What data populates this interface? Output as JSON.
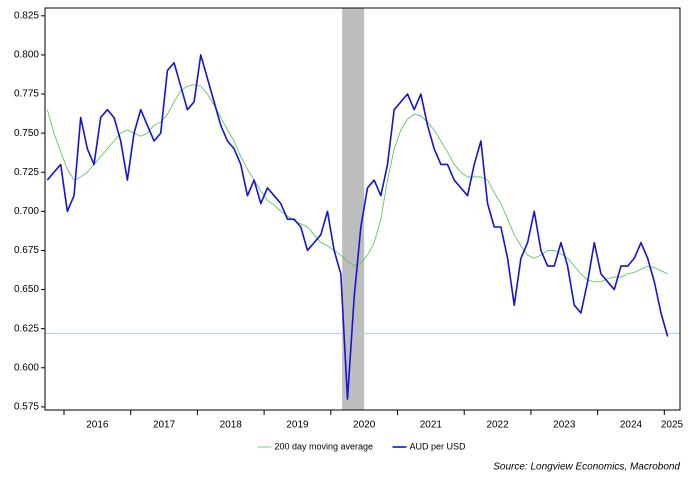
{
  "chart_data": {
    "type": "line",
    "source": "Source: Longview Economics, Macrobond",
    "x": [
      2015.75,
      2015.85,
      2015.95,
      2016.05,
      2016.15,
      2016.25,
      2016.35,
      2016.45,
      2016.55,
      2016.65,
      2016.75,
      2016.85,
      2016.95,
      2017.05,
      2017.15,
      2017.25,
      2017.35,
      2017.45,
      2017.55,
      2017.65,
      2017.75,
      2017.85,
      2017.95,
      2018.05,
      2018.15,
      2018.25,
      2018.35,
      2018.45,
      2018.55,
      2018.65,
      2018.75,
      2018.85,
      2018.95,
      2019.05,
      2019.15,
      2019.25,
      2019.35,
      2019.45,
      2019.55,
      2019.65,
      2019.75,
      2019.85,
      2019.95,
      2020.05,
      2020.15,
      2020.25,
      2020.35,
      2020.45,
      2020.55,
      2020.65,
      2020.75,
      2020.85,
      2020.95,
      2021.05,
      2021.15,
      2021.25,
      2021.35,
      2021.45,
      2021.55,
      2021.65,
      2021.75,
      2021.85,
      2021.95,
      2022.05,
      2022.15,
      2022.25,
      2022.35,
      2022.45,
      2022.55,
      2022.65,
      2022.75,
      2022.85,
      2022.95,
      2023.05,
      2023.15,
      2023.25,
      2023.35,
      2023.45,
      2023.55,
      2023.65,
      2023.75,
      2023.85,
      2023.95,
      2024.05,
      2024.15,
      2024.25,
      2024.35,
      2024.45,
      2024.55,
      2024.65,
      2024.75,
      2024.85,
      2024.95,
      2025.05
    ],
    "series": [
      {
        "name": "200 day moving average",
        "color": "#4fc24f",
        "width": 0.8,
        "values": [
          0.765,
          0.75,
          0.738,
          0.727,
          0.72,
          0.722,
          0.725,
          0.73,
          0.735,
          0.74,
          0.745,
          0.75,
          0.752,
          0.75,
          0.748,
          0.75,
          0.755,
          0.757,
          0.762,
          0.77,
          0.777,
          0.78,
          0.781,
          0.78,
          0.775,
          0.768,
          0.76,
          0.752,
          0.745,
          0.735,
          0.727,
          0.72,
          0.713,
          0.707,
          0.704,
          0.7,
          0.697,
          0.694,
          0.692,
          0.69,
          0.685,
          0.68,
          0.678,
          0.675,
          0.672,
          0.668,
          0.665,
          0.667,
          0.672,
          0.68,
          0.695,
          0.72,
          0.74,
          0.752,
          0.759,
          0.762,
          0.761,
          0.757,
          0.752,
          0.745,
          0.738,
          0.73,
          0.725,
          0.722,
          0.722,
          0.722,
          0.72,
          0.712,
          0.705,
          0.695,
          0.685,
          0.678,
          0.672,
          0.67,
          0.672,
          0.675,
          0.675,
          0.673,
          0.67,
          0.665,
          0.66,
          0.656,
          0.655,
          0.655,
          0.657,
          0.658,
          0.658,
          0.66,
          0.661,
          0.663,
          0.665,
          0.664,
          0.662,
          0.66
        ]
      },
      {
        "name": "AUD per USD",
        "color": "#1414d2",
        "width": 1.6,
        "values": [
          0.72,
          0.725,
          0.73,
          0.7,
          0.71,
          0.76,
          0.74,
          0.73,
          0.76,
          0.765,
          0.76,
          0.745,
          0.72,
          0.75,
          0.765,
          0.755,
          0.745,
          0.75,
          0.79,
          0.795,
          0.78,
          0.765,
          0.77,
          0.8,
          0.785,
          0.77,
          0.755,
          0.745,
          0.74,
          0.73,
          0.71,
          0.72,
          0.705,
          0.715,
          0.71,
          0.705,
          0.695,
          0.695,
          0.69,
          0.675,
          0.68,
          0.685,
          0.7,
          0.675,
          0.66,
          0.58,
          0.645,
          0.69,
          0.715,
          0.72,
          0.71,
          0.73,
          0.765,
          0.77,
          0.775,
          0.765,
          0.775,
          0.755,
          0.74,
          0.73,
          0.73,
          0.72,
          0.715,
          0.71,
          0.73,
          0.745,
          0.705,
          0.69,
          0.69,
          0.67,
          0.64,
          0.67,
          0.68,
          0.7,
          0.675,
          0.665,
          0.665,
          0.68,
          0.665,
          0.64,
          0.635,
          0.655,
          0.68,
          0.66,
          0.655,
          0.65,
          0.665,
          0.665,
          0.67,
          0.68,
          0.67,
          0.655,
          0.635,
          0.62
        ]
      }
    ],
    "xlim": [
      2015.715,
      2025.235
    ],
    "xticks": [
      2016,
      2017,
      2018,
      2019,
      2020,
      2021,
      2022,
      2023,
      2024,
      2025
    ],
    "ylim": [
      0.573,
      0.83
    ],
    "yticks": [
      0.575,
      {
        "value": 0.6,
        "label": "0.600"
      },
      0.625,
      {
        "value": 0.65,
        "label": "0.650"
      },
      0.675,
      {
        "value": 0.7,
        "label": "0.700"
      },
      0.725,
      {
        "value": 0.75,
        "label": "0.750"
      },
      0.775,
      {
        "value": 0.8,
        "label": "0.800"
      },
      0.825
    ],
    "reference_line": {
      "value": 0.622,
      "color": "#a8cdea"
    },
    "shade": {
      "x": [
        2020.17,
        2020.5
      ],
      "color": "#bdbdbd"
    },
    "legend": "bottom"
  }
}
